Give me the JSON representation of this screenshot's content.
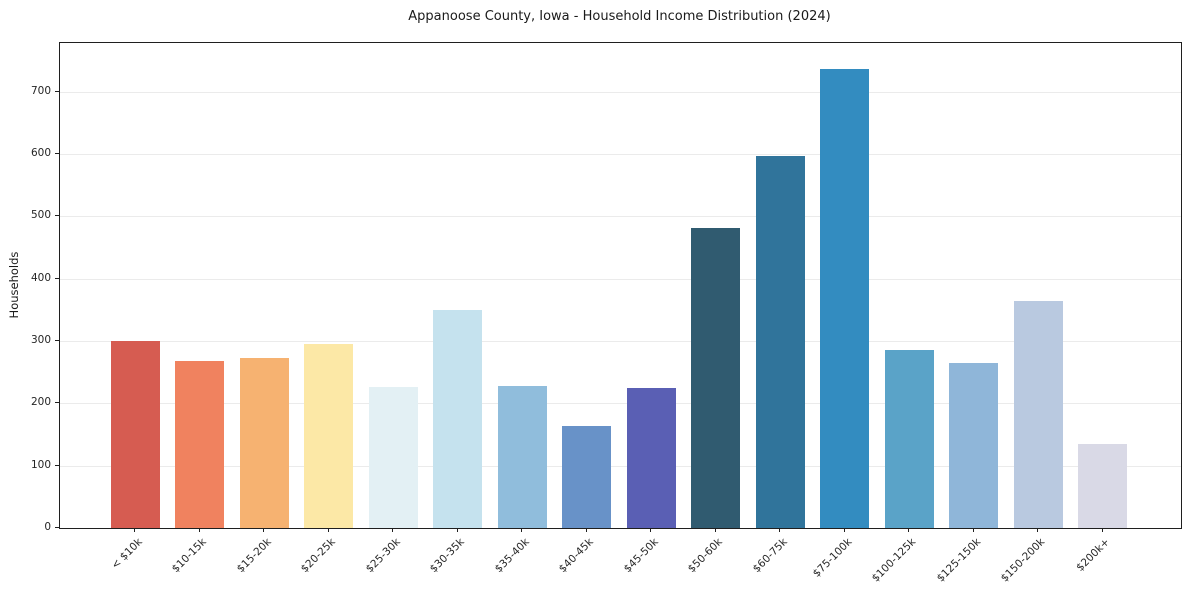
{
  "title": "Appanoose County, Iowa - Household Income Distribution (2024)",
  "chart_data": {
    "type": "bar",
    "title": "Appanoose County, Iowa - Household Income Distribution (2024)",
    "xlabel": "",
    "ylabel": "Households",
    "categories": [
      "< $10k",
      "$10-15k",
      "$15-20k",
      "$20-25k",
      "$25-30k",
      "$30-35k",
      "$35-40k",
      "$40-45k",
      "$45-50k",
      "$50-60k",
      "$60-75k",
      "$75-100k",
      "$100-125k",
      "$125-150k",
      "$150-200k",
      "$200k+"
    ],
    "values": [
      300,
      268,
      273,
      295,
      227,
      350,
      228,
      163,
      225,
      482,
      597,
      736,
      285,
      265,
      364,
      134
    ],
    "bar_colors": [
      "#d65c51",
      "#f0825f",
      "#f6b271",
      "#fce8a6",
      "#e3f0f4",
      "#c5e2ee",
      "#90bddc",
      "#6892c8",
      "#5a5fb4",
      "#305b70",
      "#30749b",
      "#338cc0",
      "#5aa3c8",
      "#8fb6d9",
      "#b9c9e0",
      "#d9d9e6"
    ],
    "yticks": [
      0,
      100,
      200,
      300,
      400,
      500,
      600,
      700
    ],
    "ylim": [
      0,
      778
    ],
    "grid": "horizontal",
    "gridline_color": "#ebebeb",
    "legend": "none",
    "x_tick_rotation_deg": 45
  }
}
